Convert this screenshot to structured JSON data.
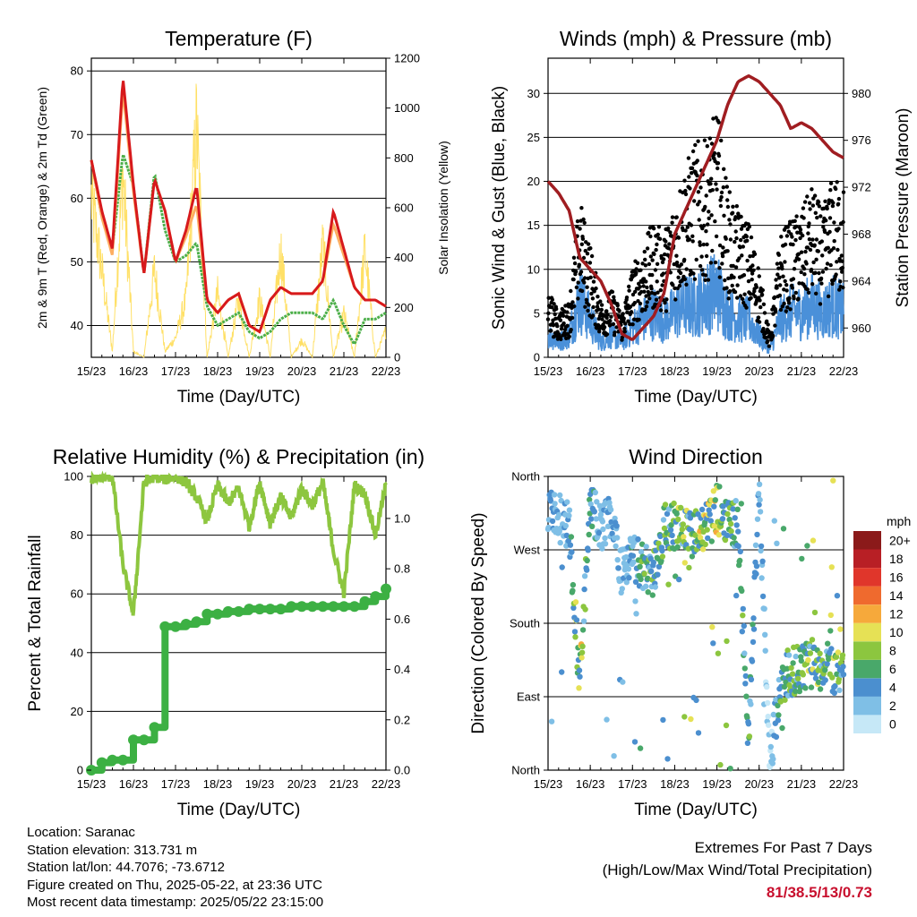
{
  "colors": {
    "temp_2m": "#d7191c",
    "temp_9m": "#fdae61",
    "dewpoint": "#4daf4a",
    "solar": "#ffe066",
    "wind": "#4a90d9",
    "gust": "#000000",
    "pressure": "#a01d21",
    "rh": "#8dc63f",
    "precip": "#3cb043",
    "extremes_value": "#c8102e"
  },
  "x_axis": {
    "ticks": [
      "15/23",
      "16/23",
      "17/23",
      "18/23",
      "19/23",
      "20/23",
      "21/23",
      "22/23"
    ],
    "label": "Time (Day/UTC)"
  },
  "chart_data": [
    {
      "id": "temperature",
      "type": "line",
      "title": "Temperature (F)",
      "xlabel": "Time (Day/UTC)",
      "ylabel": "2m & 9m T (Red, Orange) & 2m Td (Green)",
      "ylabel_right": "Solar Insolation (Yellow)",
      "ylim": [
        35,
        82
      ],
      "yticks": [
        40,
        50,
        60,
        70,
        80
      ],
      "ylim_right": [
        0,
        1200
      ],
      "yticks_right": [
        0,
        200,
        400,
        600,
        800,
        1000,
        1200
      ],
      "x": [
        0,
        0.25,
        0.5,
        0.75,
        1.0,
        1.25,
        1.5,
        1.75,
        2.0,
        2.25,
        2.5,
        2.75,
        3.0,
        3.25,
        3.5,
        3.75,
        4.0,
        4.25,
        4.5,
        4.75,
        5.0,
        5.25,
        5.5,
        5.75,
        6.0,
        6.25,
        6.5,
        6.75,
        7.0
      ],
      "series": [
        {
          "key": "t2m",
          "values": [
            66,
            58,
            52,
            79,
            62,
            48,
            63,
            58,
            50,
            55,
            62,
            44,
            42,
            44,
            45,
            40,
            39,
            44,
            46,
            45,
            45,
            45,
            47,
            58,
            52,
            46,
            44,
            44,
            43
          ]
        },
        {
          "key": "t9m",
          "values": [
            66,
            57,
            51,
            77,
            61,
            48,
            63,
            58,
            50,
            54,
            59,
            44,
            42,
            44,
            45,
            40,
            39,
            44,
            46,
            45,
            45,
            45,
            47,
            56,
            51,
            46,
            44,
            44,
            43
          ]
        },
        {
          "key": "td",
          "values": [
            66,
            57,
            52,
            67,
            62,
            48,
            64,
            55,
            50,
            51,
            53,
            43,
            40,
            41,
            42,
            39,
            38,
            39,
            41,
            42,
            42,
            42,
            41,
            44,
            40,
            37,
            41,
            41,
            42
          ]
        },
        {
          "key": "solar",
          "axis": "right",
          "values": [
            820,
            450,
            30,
            950,
            30,
            0,
            450,
            30,
            100,
            300,
            1180,
            0,
            330,
            0,
            300,
            0,
            300,
            0,
            560,
            0,
            90,
            0,
            580,
            0,
            220,
            0,
            550,
            0,
            140
          ]
        }
      ]
    },
    {
      "id": "winds",
      "type": "scatter",
      "title": "Winds (mph) & Pressure (mb)",
      "xlabel": "Time (Day/UTC)",
      "ylabel": "Sonic Wind & Gust (Blue, Black)",
      "ylabel_right": "Station Pressure (Maroon)",
      "ylim": [
        0,
        34
      ],
      "yticks": [
        0,
        5,
        10,
        15,
        20,
        25,
        30
      ],
      "ylim_right": [
        957.5,
        983
      ],
      "yticks_right": [
        960,
        964,
        968,
        972,
        976,
        980
      ],
      "x": [
        0,
        0.25,
        0.5,
        0.75,
        1.0,
        1.25,
        1.5,
        1.75,
        2.0,
        2.25,
        2.5,
        2.75,
        3.0,
        3.25,
        3.5,
        3.75,
        4.0,
        4.25,
        4.5,
        4.75,
        5.0,
        5.25,
        5.5,
        5.75,
        6.0,
        6.25,
        6.5,
        6.75,
        7.0
      ],
      "series": [
        {
          "key": "wind",
          "values": [
            3,
            2,
            3,
            8,
            5,
            2,
            3,
            2,
            4,
            5,
            6,
            5,
            6,
            7,
            7,
            8,
            9,
            6,
            5,
            5,
            3,
            1,
            5,
            6,
            6,
            7,
            6,
            7,
            6
          ]
        },
        {
          "key": "gust",
          "values": [
            6,
            4,
            5,
            14,
            10,
            5,
            6,
            4,
            8,
            10,
            12,
            11,
            14,
            17,
            19,
            19,
            22,
            15,
            13,
            12,
            8,
            2,
            11,
            12,
            13,
            15,
            13,
            16,
            15
          ]
        },
        {
          "key": "pressure",
          "axis": "right",
          "values": [
            972.5,
            971.5,
            970,
            966,
            965,
            964,
            962,
            959.5,
            959,
            960,
            961,
            963,
            968,
            970,
            972,
            974,
            976,
            979,
            981,
            981.5,
            981,
            980,
            979,
            977,
            977.5,
            977,
            976,
            975,
            974.5
          ]
        }
      ]
    },
    {
      "id": "humidity",
      "type": "line",
      "title": "Relative Humidity (%) & Precipitation (in)",
      "xlabel": "Time (Day/UTC)",
      "ylabel": "Percent & Total Rainfall",
      "ylim": [
        0,
        100
      ],
      "yticks": [
        0,
        20,
        40,
        60,
        80,
        100
      ],
      "ylim_right": [
        0,
        1.167
      ],
      "yticks_right": [
        0.0,
        0.2,
        0.4,
        0.6,
        0.8,
        1.0
      ],
      "x": [
        0,
        0.25,
        0.5,
        0.75,
        1.0,
        1.25,
        1.5,
        1.75,
        2.0,
        2.25,
        2.5,
        2.75,
        3.0,
        3.25,
        3.5,
        3.75,
        4.0,
        4.25,
        4.5,
        4.75,
        5.0,
        5.25,
        5.5,
        5.75,
        6.0,
        6.25,
        6.5,
        6.75,
        7.0
      ],
      "series": [
        {
          "key": "rh",
          "values": [
            99,
            100,
            100,
            70,
            53,
            98,
            100,
            99,
            100,
            98,
            93,
            85,
            97,
            91,
            96,
            83,
            98,
            84,
            93,
            86,
            96,
            90,
            98,
            75,
            60,
            97,
            94,
            80,
            97
          ]
        },
        {
          "key": "precip",
          "axis": "right",
          "values": [
            0.0,
            0.03,
            0.04,
            0.04,
            0.12,
            0.12,
            0.17,
            0.57,
            0.57,
            0.58,
            0.59,
            0.62,
            0.62,
            0.63,
            0.63,
            0.64,
            0.64,
            0.64,
            0.64,
            0.65,
            0.65,
            0.65,
            0.65,
            0.65,
            0.65,
            0.65,
            0.67,
            0.69,
            0.72
          ]
        }
      ]
    },
    {
      "id": "direction",
      "type": "scatter",
      "title": "Wind Direction",
      "xlabel": "Time (Day/UTC)",
      "ylabel": "Direction (Colored By Speed)",
      "ylim": [
        0,
        360
      ],
      "ytick_labels": [
        "North",
        "East",
        "South",
        "West",
        "North"
      ],
      "legend_title": "mph",
      "legend": [
        "0",
        "2",
        "4",
        "6",
        "8",
        "10",
        "12",
        "14",
        "16",
        "18",
        "20+"
      ],
      "legend_colors": [
        "#c6e8f7",
        "#7fbfe6",
        "#4b8fcf",
        "#49a86a",
        "#8cc63f",
        "#e6e155",
        "#f6a93b",
        "#ef6a2e",
        "#e0362b",
        "#b81f25",
        "#8b1a1a"
      ],
      "legend_placement": "right",
      "x": [
        0,
        0.25,
        0.5,
        0.75,
        1.0,
        1.25,
        1.5,
        1.75,
        2.0,
        2.25,
        2.5,
        2.75,
        3.0,
        3.25,
        3.5,
        3.75,
        4.0,
        4.25,
        4.5,
        4.75,
        5.0,
        5.25,
        5.5,
        5.75,
        6.0,
        6.25,
        6.5,
        6.75,
        7.0
      ],
      "series": [
        {
          "key": "direction",
          "values": [
            320,
            310,
            300,
            110,
            320,
            300,
            310,
            240,
            260,
            250,
            240,
            300,
            300,
            290,
            290,
            300,
            320,
            310,
            300,
            40,
            350,
            5,
            110,
            120,
            125,
            130,
            130,
            125,
            120
          ]
        }
      ]
    }
  ],
  "meta": {
    "location": "Location: Saranac",
    "elevation": "Station elevation: 313.731 m",
    "latlon": "Station lat/lon: 44.7076; -73.6712",
    "created": "Figure created on Thu, 2025-05-22, at 23:36 UTC",
    "recent": "Most recent data timestamp: 2025/05/22 23:15:00"
  },
  "extremes": {
    "title": "Extremes For Past 7 Days",
    "subtitle": "(High/Low/Max Wind/Total Precipitation)",
    "value": "81/38.5/13/0.73"
  }
}
